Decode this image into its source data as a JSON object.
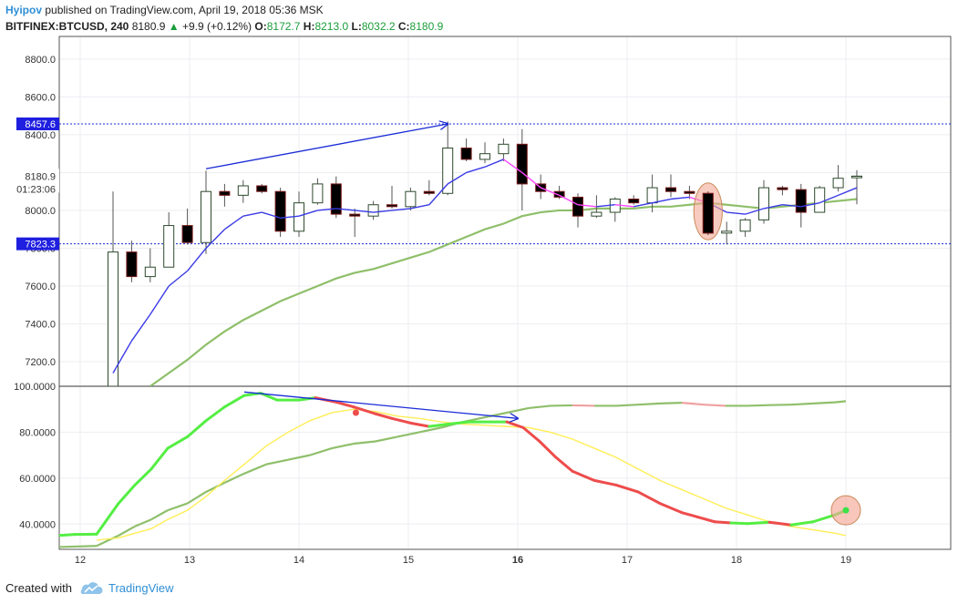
{
  "header": {
    "author": "Hyipov",
    "published_text": "published on TradingView.com, April 19, 2018 05:36 MSK",
    "symbol": "BITFINEX:BTCUSD, 240",
    "last": "8180.9",
    "change": "+9.9 (+0.12%)",
    "open_label": "O:",
    "open": "8172.7",
    "high_label": "H:",
    "high": "8213.0",
    "low_label": "L:",
    "low": "8032.2",
    "close_label": "C:",
    "close": "8180.9"
  },
  "footer": {
    "created_with": "Created with",
    "brand": "TradingView"
  },
  "colors": {
    "bull": "#ffffff",
    "bear": "#000000",
    "wick": "#555555",
    "ema_fast": "#3a3ae6",
    "ema_fast_alt": "#ff44ff",
    "ema_slow": "#8fbf6a",
    "stoch_k_up": "#55ee44",
    "stoch_k_down": "#ee4c4c",
    "stoch_d": "#ffee55",
    "stoch_slow": "#8fbf6a",
    "hline": "#1a2bd6",
    "arrow": "#1a2bd6",
    "highlight": "#f4a896"
  },
  "chart_data": [
    {
      "type": "candlestick",
      "title": "",
      "x_ticks": [
        "12",
        "13",
        "14",
        "15",
        "16",
        "17",
        "18",
        "19"
      ],
      "y_ticks": [
        "7200.0",
        "7400.0",
        "7600.0",
        "7800.0",
        "8000.0",
        "8200.0",
        "8400.0",
        "8600.0",
        "8800.0"
      ],
      "ylim": [
        7070,
        8920
      ],
      "price_labels": [
        "8457.6",
        "7823.3",
        "8180.9",
        "01:23:06"
      ],
      "horizontal_lines": [
        8457.6,
        7823.3
      ],
      "candles": [
        {
          "x": 12.3,
          "o": 7070,
          "h": 8100,
          "l": 7070,
          "c": 7780
        },
        {
          "x": 12.47,
          "o": 7780,
          "h": 7840,
          "l": 7620,
          "c": 7650
        },
        {
          "x": 12.64,
          "o": 7650,
          "h": 7800,
          "l": 7620,
          "c": 7700
        },
        {
          "x": 12.81,
          "o": 7700,
          "h": 7990,
          "l": 7700,
          "c": 7920
        },
        {
          "x": 12.98,
          "o": 7920,
          "h": 8010,
          "l": 7820,
          "c": 7830
        },
        {
          "x": 13.15,
          "o": 7830,
          "h": 8210,
          "l": 7770,
          "c": 8100
        },
        {
          "x": 13.32,
          "o": 8100,
          "h": 8140,
          "l": 8020,
          "c": 8080
        },
        {
          "x": 13.49,
          "o": 8080,
          "h": 8160,
          "l": 8040,
          "c": 8130
        },
        {
          "x": 13.66,
          "o": 8130,
          "h": 8140,
          "l": 8090,
          "c": 8100
        },
        {
          "x": 13.83,
          "o": 8100,
          "h": 8120,
          "l": 7860,
          "c": 7890
        },
        {
          "x": 14.0,
          "o": 7890,
          "h": 8100,
          "l": 7860,
          "c": 8040
        },
        {
          "x": 14.17,
          "o": 8040,
          "h": 8170,
          "l": 8030,
          "c": 8140
        },
        {
          "x": 14.34,
          "o": 8140,
          "h": 8180,
          "l": 7960,
          "c": 7980
        },
        {
          "x": 14.51,
          "o": 7980,
          "h": 8010,
          "l": 7860,
          "c": 7970
        },
        {
          "x": 14.68,
          "o": 7970,
          "h": 8050,
          "l": 7950,
          "c": 8030
        },
        {
          "x": 14.85,
          "o": 8030,
          "h": 8130,
          "l": 8010,
          "c": 8020
        },
        {
          "x": 15.02,
          "o": 8020,
          "h": 8120,
          "l": 8000,
          "c": 8100
        },
        {
          "x": 15.19,
          "o": 8100,
          "h": 8160,
          "l": 8080,
          "c": 8090
        },
        {
          "x": 15.36,
          "o": 8090,
          "h": 8470,
          "l": 8080,
          "c": 8330
        },
        {
          "x": 15.53,
          "o": 8330,
          "h": 8380,
          "l": 8260,
          "c": 8270
        },
        {
          "x": 15.7,
          "o": 8270,
          "h": 8360,
          "l": 8250,
          "c": 8300
        },
        {
          "x": 15.87,
          "o": 8300,
          "h": 8380,
          "l": 8260,
          "c": 8350
        },
        {
          "x": 16.04,
          "o": 8350,
          "h": 8430,
          "l": 8000,
          "c": 8140
        },
        {
          "x": 16.21,
          "o": 8140,
          "h": 8190,
          "l": 8060,
          "c": 8100
        },
        {
          "x": 16.38,
          "o": 8100,
          "h": 8130,
          "l": 8060,
          "c": 8070
        },
        {
          "x": 16.55,
          "o": 8070,
          "h": 8090,
          "l": 7910,
          "c": 7970
        },
        {
          "x": 16.72,
          "o": 7970,
          "h": 8080,
          "l": 7960,
          "c": 7990
        },
        {
          "x": 16.89,
          "o": 7990,
          "h": 8070,
          "l": 7940,
          "c": 8060
        },
        {
          "x": 17.06,
          "o": 8060,
          "h": 8080,
          "l": 8030,
          "c": 8040
        },
        {
          "x": 17.23,
          "o": 8040,
          "h": 8190,
          "l": 7990,
          "c": 8120
        },
        {
          "x": 17.4,
          "o": 8120,
          "h": 8190,
          "l": 8070,
          "c": 8100
        },
        {
          "x": 17.57,
          "o": 8100,
          "h": 8130,
          "l": 8060,
          "c": 8090
        },
        {
          "x": 17.74,
          "o": 8090,
          "h": 8100,
          "l": 7870,
          "c": 7880
        },
        {
          "x": 17.91,
          "o": 7880,
          "h": 7940,
          "l": 7820,
          "c": 7890
        },
        {
          "x": 18.08,
          "o": 7890,
          "h": 7960,
          "l": 7860,
          "c": 7950
        },
        {
          "x": 18.25,
          "o": 7950,
          "h": 8160,
          "l": 7930,
          "c": 8120
        },
        {
          "x": 18.42,
          "o": 8120,
          "h": 8130,
          "l": 8080,
          "c": 8110
        },
        {
          "x": 18.59,
          "o": 8110,
          "h": 8140,
          "l": 7910,
          "c": 7990
        },
        {
          "x": 18.76,
          "o": 7990,
          "h": 8130,
          "l": 7990,
          "c": 8120
        },
        {
          "x": 18.93,
          "o": 8120,
          "h": 8240,
          "l": 8100,
          "c": 8170
        },
        {
          "x": 19.1,
          "o": 8172.7,
          "h": 8213,
          "l": 8032.2,
          "c": 8180.9
        }
      ],
      "ema_fast": {
        "x": [
          12.3,
          12.47,
          12.64,
          12.81,
          12.98,
          13.15,
          13.32,
          13.49,
          13.66,
          13.83,
          14.0,
          14.17,
          14.34,
          14.51,
          14.68,
          14.85,
          15.02,
          15.19,
          15.36,
          15.53,
          15.7,
          15.87,
          16.04,
          16.21,
          16.38,
          16.55,
          16.72,
          16.89,
          17.06,
          17.23,
          17.4,
          17.57,
          17.74,
          17.91,
          18.08,
          18.25,
          18.42,
          18.59,
          18.76,
          18.93,
          19.1
        ],
        "y": [
          7140,
          7310,
          7450,
          7600,
          7680,
          7800,
          7900,
          7970,
          7990,
          7960,
          7970,
          8000,
          8010,
          8000,
          7990,
          8000,
          8010,
          8030,
          8140,
          8200,
          8230,
          8270,
          8200,
          8120,
          8080,
          8030,
          8020,
          8030,
          8020,
          8040,
          8060,
          8070,
          8040,
          7990,
          7980,
          8010,
          8030,
          8020,
          8040,
          8080,
          8120
        ]
      },
      "ema_slow": {
        "x": [
          12.64,
          12.81,
          12.98,
          13.15,
          13.32,
          13.49,
          13.66,
          13.83,
          14.0,
          14.17,
          14.34,
          14.51,
          14.68,
          14.85,
          15.02,
          15.19,
          15.36,
          15.53,
          15.7,
          15.87,
          16.04,
          16.21,
          16.38,
          16.55,
          16.72,
          16.89,
          17.06,
          17.23,
          17.4,
          17.57,
          17.74,
          17.91,
          18.08,
          18.25,
          18.42,
          18.59,
          18.76,
          18.93,
          19.1
        ],
        "y": [
          7070,
          7140,
          7210,
          7290,
          7360,
          7420,
          7470,
          7520,
          7560,
          7600,
          7640,
          7670,
          7690,
          7720,
          7750,
          7780,
          7820,
          7860,
          7900,
          7930,
          7970,
          7990,
          8000,
          8000,
          8010,
          8010,
          8010,
          8020,
          8020,
          8030,
          8040,
          8030,
          8020,
          8010,
          8020,
          8030,
          8040,
          8050,
          8060
        ]
      },
      "annotations": [
        {
          "type": "arrow",
          "from": [
            13.15,
            8220
          ],
          "to": [
            15.36,
            8457.6
          ]
        },
        {
          "type": "ellipse",
          "center": [
            17.74,
            7995
          ],
          "rx": 0.13,
          "ry": 150
        }
      ]
    },
    {
      "type": "line",
      "title": "",
      "y_ticks": [
        "40.0000",
        "60.0000",
        "80.0000",
        "100.0000"
      ],
      "ylim": [
        29,
        100
      ],
      "series": [
        {
          "x": [
            11.8,
            11.95,
            12.15,
            12.35,
            12.5,
            12.65,
            12.8,
            12.98,
            13.15,
            13.32,
            13.5,
            13.65,
            13.8,
            14.0,
            14.15,
            14.35,
            14.5,
            14.7,
            14.85,
            15.02,
            15.19,
            15.36,
            15.55,
            15.75,
            15.9,
            16.05,
            16.2,
            16.35,
            16.5,
            16.7,
            16.9,
            17.1,
            17.3,
            17.5,
            17.65,
            17.8,
            17.95,
            18.1,
            18.3,
            18.5,
            18.7,
            18.9,
            19.0
          ],
          "y": [
            35,
            35.5,
            35.6,
            49,
            57,
            64,
            73,
            78,
            85,
            91,
            96,
            97,
            94,
            94,
            95,
            93,
            91,
            88,
            86,
            84,
            82.5,
            83.5,
            84.5,
            84.5,
            84.5,
            82,
            76,
            69,
            63,
            59,
            57,
            54,
            49,
            45,
            43,
            41,
            40.5,
            40.2,
            40.8,
            39.6,
            41,
            44,
            46
          ]
        },
        {
          "x": [
            12.15,
            12.35,
            12.5,
            12.65,
            12.8,
            12.98,
            13.15,
            13.32,
            13.5,
            13.7,
            13.9,
            14.1,
            14.3,
            14.5,
            14.7,
            14.9,
            15.1,
            15.3,
            15.5,
            15.7,
            15.9,
            16.1,
            16.3,
            16.5,
            16.7,
            16.9,
            17.1,
            17.3,
            17.5,
            17.7,
            17.9,
            18.1,
            18.3,
            18.5,
            18.7,
            18.9,
            19.0
          ],
          "y": [
            33,
            34,
            36,
            38,
            42,
            46,
            52,
            59,
            66,
            74,
            80,
            85,
            88.5,
            90,
            89,
            87,
            86,
            84.5,
            83.5,
            83,
            82.5,
            82,
            80,
            77,
            73,
            69,
            64,
            59,
            55,
            51,
            47,
            44,
            41,
            39,
            37.5,
            36,
            35
          ]
        },
        {
          "x": [
            11.8,
            12.15,
            12.35,
            12.5,
            12.65,
            12.8,
            12.98,
            13.15,
            13.32,
            13.5,
            13.7,
            13.9,
            14.1,
            14.3,
            14.5,
            14.7,
            14.9,
            15.1,
            15.3,
            15.5,
            15.7,
            15.9,
            16.1,
            16.3,
            16.5,
            16.7,
            16.9,
            17.1,
            17.3,
            17.5,
            17.7,
            17.9,
            18.1,
            18.3,
            18.5,
            18.7,
            18.9,
            19.0
          ],
          "y": [
            30,
            30.5,
            35,
            39,
            42,
            46,
            49,
            54,
            58,
            62,
            66,
            68,
            70,
            73,
            75,
            76,
            78,
            80,
            82,
            84.5,
            86.5,
            88.5,
            90.5,
            91.5,
            91.7,
            91.5,
            91.5,
            92,
            92.5,
            92.8,
            92,
            91.5,
            91.5,
            91.8,
            92,
            92.5,
            93,
            93.5
          ]
        }
      ],
      "annotations": [
        {
          "type": "arrow",
          "from": [
            13.5,
            97.5
          ],
          "to": [
            16.0,
            86
          ]
        },
        {
          "type": "dot",
          "at": [
            14.52,
            88.5
          ]
        },
        {
          "type": "circle",
          "center": [
            19.0,
            46
          ],
          "r": 16
        }
      ]
    }
  ]
}
